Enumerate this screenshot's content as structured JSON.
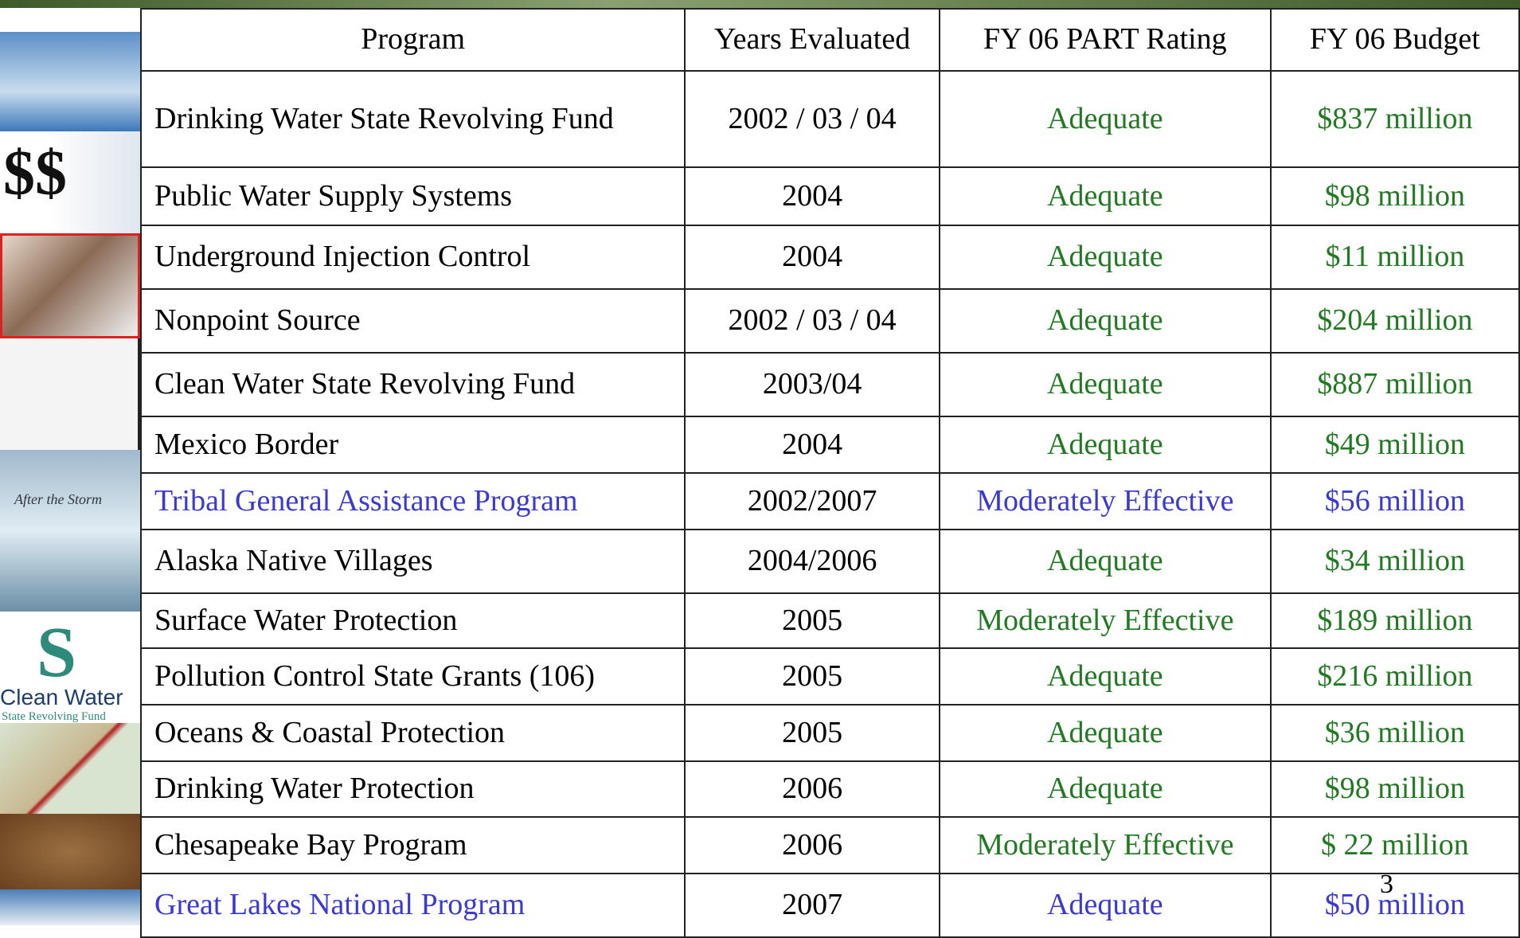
{
  "table": {
    "header": [
      "Program",
      "Years Evaluated",
      "FY 06 PART Rating",
      "FY 06 Budget"
    ],
    "rows": [
      [
        "Drinking Water State Revolving Fund",
        "2002 / 03 / 04",
        "Adequate",
        "$837 million"
      ],
      [
        "Public Water Supply Systems",
        "2004",
        "Adequate",
        "$98 million"
      ],
      [
        "Underground Injection Control",
        "2004",
        "Adequate",
        "$11 million"
      ],
      [
        "Nonpoint Source",
        "2002 / 03 / 04",
        "Adequate",
        "$204 million"
      ],
      [
        "Clean Water State Revolving Fund",
        "2003/04",
        "Adequate",
        "$887 million"
      ],
      [
        "Mexico Border",
        "2004",
        "Adequate",
        "$49 million"
      ],
      [
        "Tribal General Assistance Program",
        "2002/2007",
        "Moderately Effective",
        "$56 million"
      ],
      [
        "Alaska Native Villages",
        "2004/2006",
        "Adequate",
        "$34 million"
      ],
      [
        "Surface Water Protection",
        "2005",
        "Moderately Effective",
        "$189 million"
      ],
      [
        "Pollution Control State Grants (106)",
        "2005",
        "Adequate",
        "$216 million"
      ],
      [
        "Oceans & Coastal Protection",
        "2005",
        "Adequate",
        "$36 million"
      ],
      [
        "Drinking Water Protection",
        "2006",
        "Adequate",
        "$98 million"
      ],
      [
        "Chesapeake Bay Program",
        "2006",
        "Moderately Effective",
        "$ 22 million"
      ],
      [
        "Great Lakes National Program",
        "2007",
        "Adequate",
        "$50 million"
      ]
    ]
  },
  "side_labels": [
    "After the Storm",
    "Clean Water",
    "State Revolving Fund"
  ],
  "page_number": "3"
}
